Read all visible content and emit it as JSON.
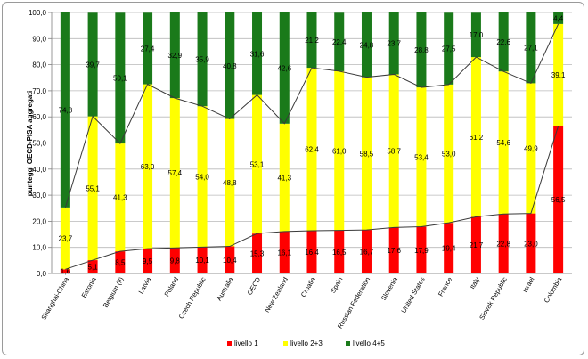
{
  "chart_data": {
    "type": "bar",
    "stacked": true,
    "ylabel": "punteggi OECD-PISA aggregati",
    "ylim": [
      0,
      100
    ],
    "yticks": [
      "0,0",
      "10,0",
      "20,0",
      "30,0",
      "40,0",
      "50,0",
      "60,0",
      "70,0",
      "80,0",
      "90,0",
      "100,0"
    ],
    "grid": true,
    "legend_position": "bottom",
    "categories": [
      "Shanghai-China",
      "Estonia",
      "Belgium (fl)",
      "Latvia",
      "Poland",
      "Czech Republic",
      "Australia",
      "OECD",
      "New Zealand",
      "Croatia",
      "Spain",
      "Russian Federation",
      "Slovenia",
      "United States",
      "France",
      "Italy",
      "Slovak Republic",
      "Israel",
      "Colombia"
    ],
    "series": [
      {
        "name": "livello 1",
        "color": "#ff0000",
        "values": [
          1.6,
          5.1,
          8.5,
          9.5,
          9.8,
          10.1,
          10.4,
          15.3,
          16.1,
          16.4,
          16.5,
          16.7,
          17.6,
          17.9,
          19.4,
          21.7,
          22.8,
          23.0,
          56.5
        ],
        "labels": [
          "1,6",
          "5,1",
          "8,5",
          "9,5",
          "9,8",
          "10,1",
          "10,4",
          "15,3",
          "16,1",
          "16,4",
          "16,5",
          "16,7",
          "17,6",
          "17,9",
          "19,4",
          "21,7",
          "22,8",
          "23,0",
          "56,5"
        ]
      },
      {
        "name": "livello 2+3",
        "color": "#ffff00",
        "values": [
          23.7,
          55.1,
          41.3,
          63.0,
          57.4,
          54.0,
          48.8,
          53.1,
          41.3,
          62.4,
          61.0,
          58.5,
          58.7,
          53.4,
          53.0,
          61.2,
          54.6,
          49.9,
          39.1
        ],
        "labels": [
          "23,7",
          "55,1",
          "41,3",
          "63,0",
          "57,4",
          "54,0",
          "48,8",
          "53,1",
          "41,3",
          "62,4",
          "61,0",
          "58,5",
          "58,7",
          "53,4",
          "53,0",
          "61,2",
          "54,6",
          "49,9",
          "39,1"
        ]
      },
      {
        "name": "livello 4+5",
        "color": "#1a7a1a",
        "values": [
          74.8,
          39.7,
          50.1,
          27.4,
          32.9,
          35.9,
          40.8,
          31.6,
          42.6,
          21.2,
          22.4,
          24.8,
          23.7,
          28.8,
          27.5,
          17.0,
          22.6,
          27.1,
          4.4
        ],
        "labels": [
          "74,8",
          "39,7",
          "50,1",
          "27,4",
          "32,9",
          "35,9",
          "40,8",
          "31,6",
          "42,6",
          "21,2",
          "22,4",
          "24,8",
          "23,7",
          "28,8",
          "27,5",
          "17,0",
          "22,6",
          "27,1",
          "4,4"
        ]
      }
    ]
  }
}
